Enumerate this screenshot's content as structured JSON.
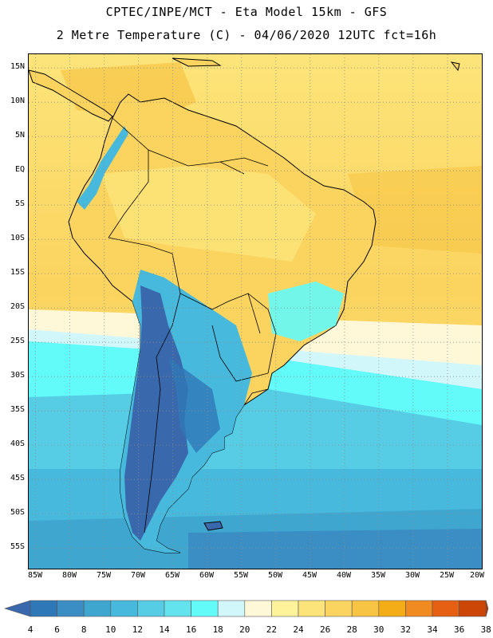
{
  "header": {
    "line1": "CPTEC/INPE/MCT -  Eta Model 15km - GFS",
    "line2": "2 Metre Temperature (C) - 04/06/2020 12UTC fct=16h"
  },
  "map": {
    "lat_labels": [
      "15N",
      "10N",
      "5N",
      "EQ",
      "5S",
      "10S",
      "15S",
      "20S",
      "25S",
      "30S",
      "35S",
      "40S",
      "45S",
      "50S",
      "55S"
    ],
    "lon_labels": [
      "85W",
      "80W",
      "75W",
      "70W",
      "65W",
      "60W",
      "55W",
      "50W",
      "45W",
      "40W",
      "35W",
      "30W",
      "25W",
      "20W"
    ],
    "lat_range": [
      17,
      -58
    ],
    "lon_range": [
      -86,
      -20
    ],
    "gridline_color": "#8c8c8c"
  },
  "colorbar": {
    "labels": [
      "4",
      "6",
      "8",
      "10",
      "12",
      "14",
      "16",
      "18",
      "20",
      "22",
      "24",
      "26",
      "28",
      "30",
      "32",
      "34",
      "36",
      "38"
    ],
    "colors": [
      "#3968ac",
      "#2f78b8",
      "#3a8ec4",
      "#3fa6d0",
      "#46b9dc",
      "#56cde4",
      "#62e3ee",
      "#63fafa",
      "#d2f7fb",
      "#fff8d8",
      "#fef39a",
      "#fde47a",
      "#fbd45f",
      "#f7c444",
      "#f4ac17",
      "#ef8b20",
      "#e56012",
      "#cc4608",
      "#b63a03"
    ]
  }
}
